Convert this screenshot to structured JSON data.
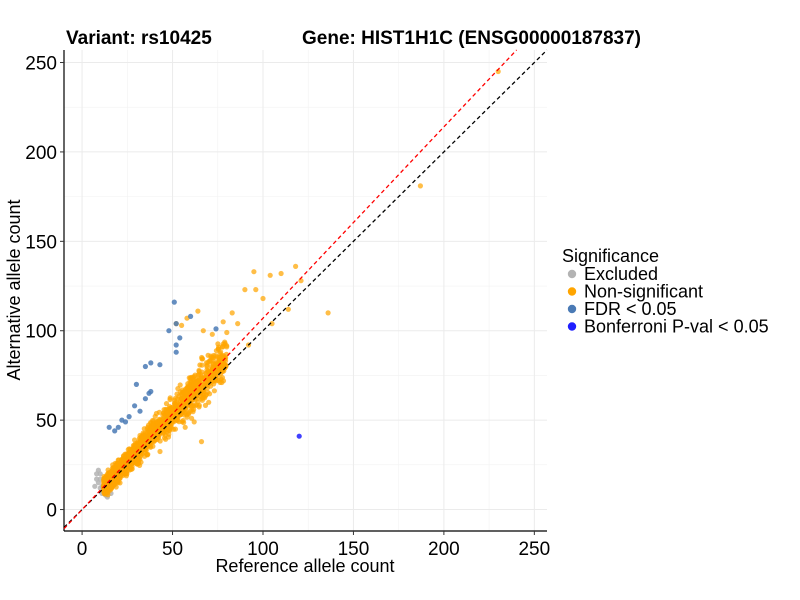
{
  "chart_data": {
    "type": "scatter",
    "title_left": "Variant: rs10425",
    "title_right": "Gene: HIST1H1C (ENSG00000187837)",
    "xlabel": "Reference allele count",
    "ylabel": "Alternative allele count",
    "xlim": [
      -10,
      257
    ],
    "ylim": [
      -12,
      257
    ],
    "xticks": [
      0,
      50,
      100,
      150,
      200,
      250
    ],
    "yticks": [
      0,
      50,
      100,
      150,
      200,
      250
    ],
    "reference_lines": [
      {
        "name": "identity",
        "color": "#000000",
        "slope": 1.0,
        "intercept": 0
      },
      {
        "name": "fitted",
        "color": "#ff0000",
        "slope": 1.07,
        "intercept": 0
      }
    ],
    "legend": {
      "title": "Significance",
      "items": [
        {
          "label": "Excluded",
          "color": "#b3b3b3"
        },
        {
          "label": "Non-significant",
          "color": "#ffa500"
        },
        {
          "label": "FDR < 0.05",
          "color": "#4a7ab5"
        },
        {
          "label": "Bonferroni P-val < 0.05",
          "color": "#1f1fff"
        }
      ]
    },
    "series": [
      {
        "name": "Non-significant",
        "color": "#ffa500",
        "cloud": {
          "count": 1500,
          "x_range": [
            12,
            80
          ],
          "slope": 1.07,
          "spread": 9
        },
        "points": [
          [
            230,
            245
          ],
          [
            187,
            181
          ],
          [
            136,
            110
          ],
          [
            121,
            128
          ],
          [
            118,
            136
          ],
          [
            110,
            132
          ],
          [
            104,
            131
          ],
          [
            95,
            133
          ],
          [
            96,
            123
          ],
          [
            90,
            123
          ],
          [
            83,
            110
          ],
          [
            78,
            105
          ],
          [
            72,
            98
          ],
          [
            67,
            100
          ],
          [
            64,
            111
          ],
          [
            58,
            107
          ],
          [
            55,
            103
          ],
          [
            52,
            104
          ],
          [
            69,
            80
          ],
          [
            68,
            74
          ],
          [
            66,
            62
          ],
          [
            60,
            55
          ],
          [
            66,
            38
          ],
          [
            72,
            78
          ],
          [
            80,
            99
          ],
          [
            86,
            104
          ],
          [
            100,
            118
          ],
          [
            114,
            112
          ],
          [
            105,
            104
          ],
          [
            92,
            92
          ],
          [
            62,
            49
          ],
          [
            70,
            60
          ],
          [
            74,
            72
          ],
          [
            57,
            46
          ],
          [
            64,
            70
          ]
        ]
      },
      {
        "name": "Excluded",
        "color": "#b3b3b3",
        "points": [
          [
            8,
            20
          ],
          [
            9,
            15
          ],
          [
            10,
            12
          ],
          [
            10,
            17
          ],
          [
            11,
            9
          ],
          [
            11,
            13
          ],
          [
            12,
            10
          ],
          [
            13,
            8
          ],
          [
            14,
            7
          ],
          [
            9,
            22
          ],
          [
            15,
            12
          ],
          [
            12,
            14
          ],
          [
            8,
            17
          ],
          [
            10,
            20
          ],
          [
            13,
            11
          ],
          [
            7,
            13
          ],
          [
            16,
            9
          ]
        ]
      },
      {
        "name": "FDR < 0.05",
        "color": "#4a7ab5",
        "points": [
          [
            74,
            101
          ],
          [
            48,
            100
          ],
          [
            52,
            104
          ],
          [
            51,
            116
          ],
          [
            54,
            96
          ],
          [
            52,
            88
          ],
          [
            38,
            82
          ],
          [
            35,
            80
          ],
          [
            43,
            81
          ],
          [
            52,
            92
          ],
          [
            38,
            66
          ],
          [
            35,
            62
          ],
          [
            37,
            65
          ],
          [
            30,
            70
          ],
          [
            29,
            58
          ],
          [
            32,
            55
          ],
          [
            22,
            50
          ],
          [
            20,
            46
          ],
          [
            18,
            44
          ],
          [
            15,
            46
          ],
          [
            26,
            52
          ],
          [
            24,
            49
          ],
          [
            60,
            108
          ]
        ]
      },
      {
        "name": "Bonferroni P-val < 0.05",
        "color": "#1f1fff",
        "points": [
          [
            120,
            41
          ]
        ]
      }
    ]
  }
}
